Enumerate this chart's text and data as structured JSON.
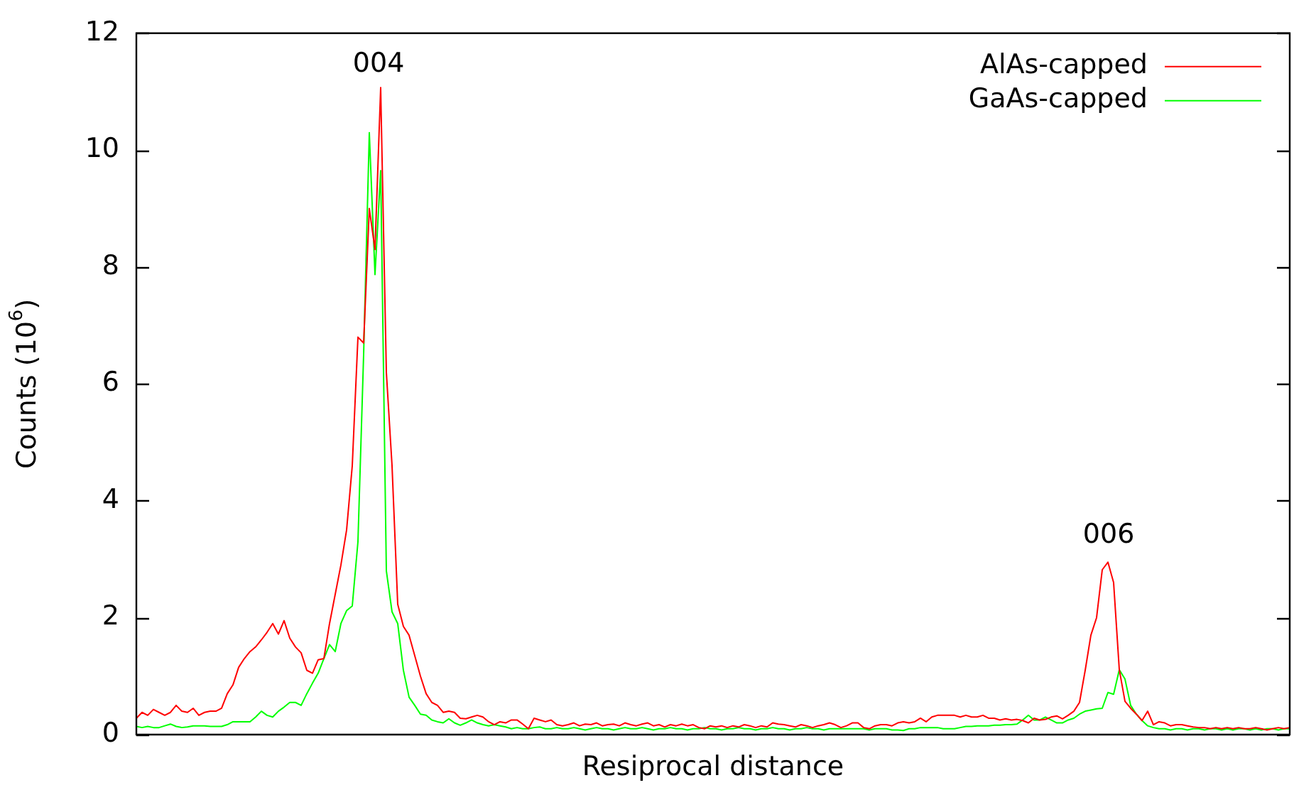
{
  "chart_data": {
    "type": "line",
    "xlabel": "Resiprocal distance",
    "ylabel": "Counts (10$^{6}$)",
    "ylim": [
      0,
      12
    ],
    "yticks": [
      0,
      2,
      4,
      6,
      8,
      10,
      12
    ],
    "legend": "top right",
    "marker": "none",
    "annotations": [
      "004",
      "006"
    ],
    "categories": [
      null,
      null,
      null,
      null,
      null,
      null,
      null,
      null,
      null,
      null,
      null,
      null,
      null,
      null,
      null,
      null,
      null,
      null,
      null,
      null,
      null,
      null,
      null,
      null,
      null,
      null,
      null,
      null,
      null,
      null,
      null,
      null,
      null,
      null,
      null,
      null,
      null,
      null,
      null,
      null,
      null,
      null,
      null,
      null,
      null,
      null,
      null,
      null,
      null,
      null,
      null,
      null,
      null,
      null,
      null,
      null,
      null,
      null,
      null,
      null,
      null,
      null,
      null,
      null,
      null,
      null,
      null,
      null,
      null,
      null,
      null,
      null,
      null,
      null,
      null,
      null,
      null,
      null,
      null,
      null,
      null,
      null,
      null,
      null,
      null,
      null,
      null,
      null,
      null,
      null,
      null,
      null,
      null,
      null,
      null,
      null,
      null,
      null,
      null,
      null,
      null,
      null,
      null,
      null,
      null,
      null,
      null,
      null,
      null,
      null,
      null,
      null,
      null,
      null,
      null,
      null,
      null,
      null,
      null,
      null,
      null,
      null,
      null,
      null,
      null,
      null,
      null,
      null,
      null,
      null,
      null,
      null,
      null,
      null,
      null,
      null,
      null,
      null,
      null,
      null,
      null,
      null,
      null,
      null,
      null,
      null,
      null,
      null,
      null,
      null,
      null,
      null,
      null,
      null,
      null,
      null,
      null,
      null,
      null,
      null,
      null,
      null,
      null,
      null,
      null,
      null,
      null,
      null,
      null,
      null,
      null,
      null,
      null,
      null,
      null,
      null,
      null,
      null,
      null,
      null,
      null,
      null,
      null,
      null,
      null,
      null,
      null,
      null,
      null,
      null,
      null,
      null,
      null,
      null,
      null,
      null,
      null,
      null,
      null,
      null,
      null,
      null,
      null,
      null
    ],
    "series": [
      {
        "name": "AlAs-capped",
        "color": "#ff0000",
        "values": [
          0.28,
          0.38,
          0.33,
          0.43,
          0.38,
          0.33,
          0.38,
          0.5,
          0.4,
          0.38,
          0.45,
          0.33,
          0.38,
          0.4,
          0.4,
          0.45,
          0.7,
          0.85,
          1.15,
          1.3,
          1.42,
          1.5,
          1.62,
          1.75,
          1.9,
          1.72,
          1.95,
          1.65,
          1.5,
          1.4,
          1.1,
          1.05,
          1.28,
          1.3,
          1.9,
          2.4,
          2.9,
          3.5,
          4.6,
          6.8,
          6.7,
          9.0,
          8.3,
          11.07,
          6.2,
          4.6,
          2.23,
          1.85,
          1.7,
          1.35,
          1.0,
          0.7,
          0.55,
          0.5,
          0.38,
          0.4,
          0.38,
          0.28,
          0.27,
          0.3,
          0.33,
          0.3,
          0.22,
          0.17,
          0.22,
          0.2,
          0.25,
          0.25,
          0.18,
          0.1,
          0.28,
          0.25,
          0.22,
          0.25,
          0.17,
          0.15,
          0.17,
          0.2,
          0.15,
          0.18,
          0.17,
          0.2,
          0.15,
          0.17,
          0.18,
          0.15,
          0.2,
          0.17,
          0.15,
          0.18,
          0.2,
          0.15,
          0.17,
          0.13,
          0.17,
          0.15,
          0.18,
          0.15,
          0.17,
          0.12,
          0.1,
          0.15,
          0.13,
          0.15,
          0.12,
          0.15,
          0.13,
          0.17,
          0.15,
          0.12,
          0.15,
          0.13,
          0.2,
          0.18,
          0.17,
          0.15,
          0.13,
          0.17,
          0.15,
          0.12,
          0.15,
          0.17,
          0.2,
          0.17,
          0.12,
          0.15,
          0.2,
          0.2,
          0.12,
          0.1,
          0.15,
          0.17,
          0.17,
          0.15,
          0.2,
          0.22,
          0.2,
          0.22,
          0.28,
          0.22,
          0.3,
          0.33,
          0.33,
          0.33,
          0.33,
          0.3,
          0.33,
          0.3,
          0.3,
          0.33,
          0.28,
          0.28,
          0.25,
          0.27,
          0.25,
          0.26,
          0.24,
          0.2,
          0.28,
          0.25,
          0.26,
          0.3,
          0.32,
          0.27,
          0.33,
          0.4,
          0.55,
          1.1,
          1.7,
          2.0,
          2.82,
          2.95,
          2.6,
          1.11,
          0.57,
          0.45,
          0.35,
          0.24,
          0.4,
          0.17,
          0.22,
          0.2,
          0.15,
          0.17,
          0.17,
          0.15,
          0.13,
          0.12,
          0.12,
          0.1,
          0.12,
          0.1,
          0.12,
          0.1,
          0.12,
          0.1,
          0.1,
          0.12,
          0.1,
          0.08,
          0.1,
          0.12,
          0.1,
          0.12
        ]
      },
      {
        "name": "GaAs-capped",
        "color": "#00ff00",
        "values": [
          0.14,
          0.12,
          0.14,
          0.12,
          0.12,
          0.15,
          0.18,
          0.14,
          0.12,
          0.13,
          0.15,
          0.15,
          0.15,
          0.14,
          0.14,
          0.14,
          0.17,
          0.22,
          0.22,
          0.22,
          0.22,
          0.3,
          0.4,
          0.33,
          0.3,
          0.4,
          0.47,
          0.55,
          0.55,
          0.5,
          0.7,
          0.88,
          1.05,
          1.3,
          1.54,
          1.42,
          1.9,
          2.12,
          2.2,
          3.3,
          6.5,
          10.3,
          7.87,
          9.65,
          2.8,
          2.1,
          1.9,
          1.1,
          0.64,
          0.5,
          0.35,
          0.33,
          0.25,
          0.22,
          0.2,
          0.27,
          0.2,
          0.16,
          0.2,
          0.25,
          0.2,
          0.17,
          0.15,
          0.17,
          0.15,
          0.13,
          0.1,
          0.12,
          0.1,
          0.1,
          0.12,
          0.13,
          0.1,
          0.1,
          0.12,
          0.1,
          0.1,
          0.12,
          0.1,
          0.08,
          0.1,
          0.12,
          0.1,
          0.1,
          0.08,
          0.1,
          0.12,
          0.1,
          0.1,
          0.12,
          0.1,
          0.08,
          0.1,
          0.1,
          0.12,
          0.1,
          0.1,
          0.08,
          0.1,
          0.1,
          0.12,
          0.1,
          0.1,
          0.08,
          0.1,
          0.1,
          0.12,
          0.1,
          0.1,
          0.08,
          0.1,
          0.1,
          0.12,
          0.1,
          0.1,
          0.08,
          0.1,
          0.1,
          0.12,
          0.1,
          0.1,
          0.08,
          0.1,
          0.1,
          0.1,
          0.1,
          0.1,
          0.1,
          0.1,
          0.08,
          0.1,
          0.1,
          0.1,
          0.08,
          0.08,
          0.07,
          0.1,
          0.1,
          0.12,
          0.12,
          0.12,
          0.12,
          0.1,
          0.1,
          0.1,
          0.12,
          0.14,
          0.14,
          0.15,
          0.15,
          0.15,
          0.16,
          0.16,
          0.17,
          0.17,
          0.18,
          0.25,
          0.33,
          0.25,
          0.25,
          0.3,
          0.25,
          0.2,
          0.2,
          0.25,
          0.28,
          0.35,
          0.4,
          0.42,
          0.44,
          0.45,
          0.72,
          0.69,
          1.11,
          0.95,
          0.5,
          0.35,
          0.24,
          0.15,
          0.12,
          0.1,
          0.1,
          0.08,
          0.1,
          0.1,
          0.08,
          0.1,
          0.1,
          0.08,
          0.1,
          0.1,
          0.08,
          0.1,
          0.08,
          0.1,
          0.1,
          0.08,
          0.1,
          0.08,
          0.1,
          0.1,
          0.08,
          0.1,
          0.1
        ]
      }
    ]
  }
}
